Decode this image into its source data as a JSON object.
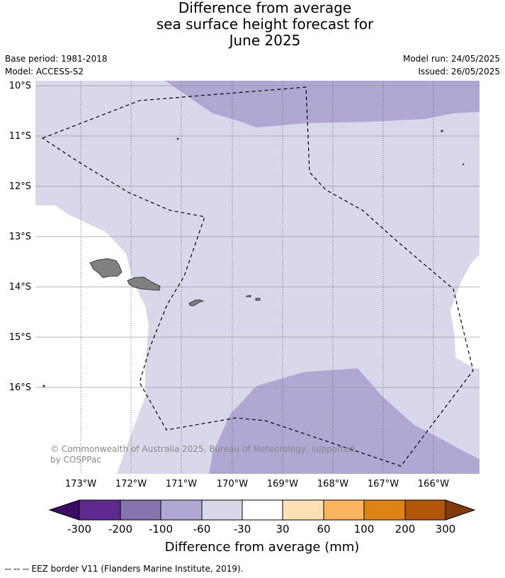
{
  "title": {
    "line1": "Difference from average",
    "line2": "sea surface height forecast for",
    "line3": "June 2025"
  },
  "meta": {
    "base_period": "Base period: 1981-2018",
    "model": "Model: ACCESS-S2",
    "model_run": "Model run: 24/05/2025",
    "issued": "Issued: 26/05/2025"
  },
  "map": {
    "lat_labels": [
      "10°S",
      "11°S",
      "12°S",
      "13°S",
      "14°S",
      "15°S",
      "16°S"
    ],
    "lon_labels": [
      "173°W",
      "172°W",
      "171°W",
      "170°W",
      "169°W",
      "168°W",
      "167°W",
      "166°W"
    ],
    "copyright_line1": "© Commonwealth of Australia 2025, Bureau of Meteorology, supported",
    "copyright_line2": "by COSPPac",
    "colors": {
      "light_lavender": "#d8d8ea",
      "lavender": "#b0a8d2",
      "land": "#808080",
      "grid": "#aaaaaa"
    }
  },
  "colorbar": {
    "tick_labels": [
      "-300",
      "-200",
      "-100",
      "-60",
      "-30",
      "30",
      "60",
      "100",
      "200",
      "300"
    ],
    "label": "Difference from average (mm)",
    "colors": [
      "#3b0a64",
      "#5f2a8f",
      "#8473ad",
      "#b0a8d2",
      "#d8d8ea",
      "#ffffff",
      "#fde0b6",
      "#fbb45f",
      "#e08316",
      "#b25707",
      "#7f3b08"
    ]
  },
  "footer": {
    "legend_text": "--  --  -- EEZ border V11 (Flanders Marine Institute, 2019)."
  }
}
